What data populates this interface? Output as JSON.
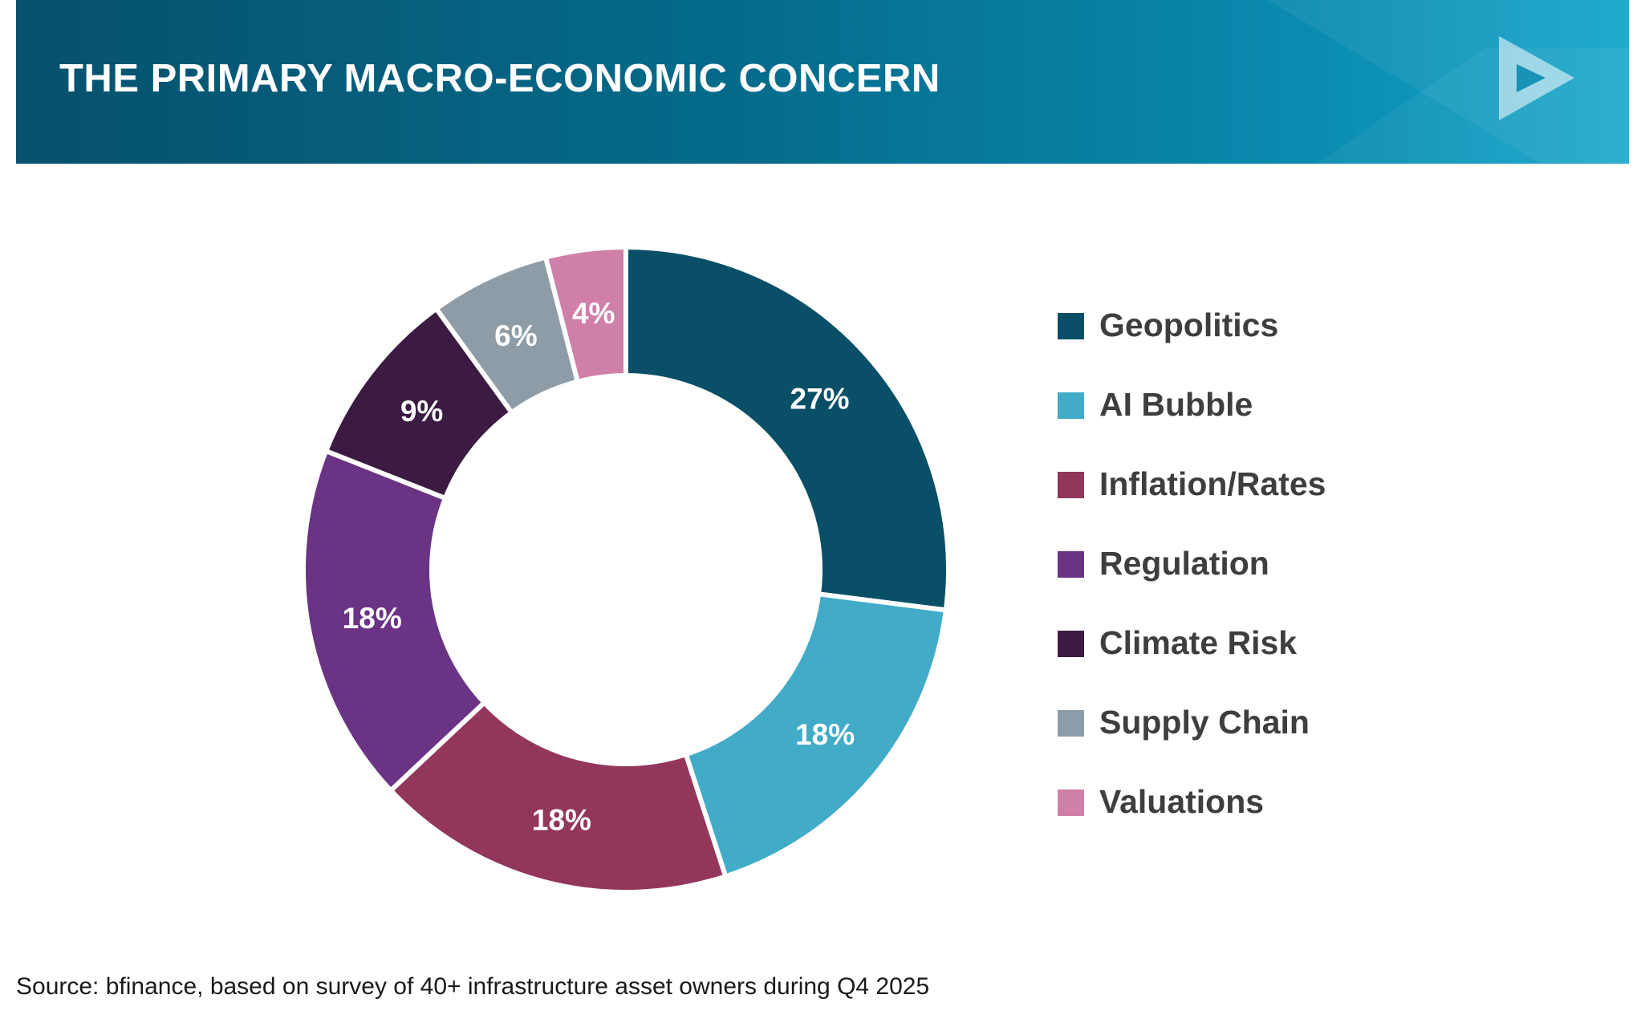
{
  "header": {
    "title": "THE PRIMARY MACRO-ECONOMIC CONCERN"
  },
  "chart_data": {
    "type": "pie",
    "style": "donut",
    "title": "THE PRIMARY MACRO-ECONOMIC CONCERN",
    "legend_position": "right",
    "categories": [
      "Geopolitics",
      "AI Bubble",
      "Inflation/Rates",
      "Regulation",
      "Climate Risk",
      "Supply Chain",
      "Valuations"
    ],
    "values": [
      27,
      18,
      18,
      18,
      9,
      6,
      4
    ],
    "data_labels": [
      "27%",
      "18%",
      "18%",
      "18%",
      "9%",
      "6%",
      "4%"
    ],
    "colors": [
      "#0a4f68",
      "#42abc8",
      "#92365c",
      "#6b3384",
      "#3b1b42",
      "#8e9ca7",
      "#cf7fa8"
    ]
  },
  "source": "Source: bfinance, based on survey of 40+ infrastructure asset owners during Q4 2025",
  "colors": {
    "header_start": "#06516d",
    "header_end": "#14a6cb",
    "legend_text": "#3e3e3e"
  }
}
